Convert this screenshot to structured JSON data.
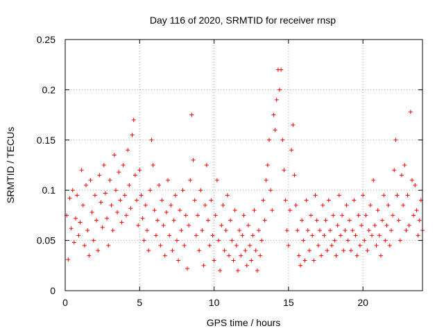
{
  "chart_data": {
    "type": "scatter",
    "title": "Day 116 of 2020, SRMTID for receiver rnsp",
    "xlabel": "GPS time / hours",
    "ylabel": "SRMTID / TECUs",
    "xlim": [
      0,
      24
    ],
    "ylim": [
      0,
      0.25
    ],
    "xticks": [
      0,
      5,
      10,
      15,
      20
    ],
    "xtick_labels": [
      "0",
      "5",
      "10",
      "15",
      "20"
    ],
    "yticks": [
      0,
      0.05,
      0.1,
      0.15,
      0.2,
      0.25
    ],
    "ytick_labels": [
      "0",
      "0.05",
      "0.1",
      "0.15",
      "0.2",
      "0.25"
    ],
    "grid": true,
    "marker": "+",
    "series": [
      {
        "name": "SRMTID",
        "color": "#ff0000",
        "points": [
          [
            0.1,
            0.075
          ],
          [
            0.2,
            0.031
          ],
          [
            0.3,
            0.092
          ],
          [
            0.4,
            0.062
          ],
          [
            0.5,
            0.1
          ],
          [
            0.6,
            0.048
          ],
          [
            0.7,
            0.072
          ],
          [
            0.8,
            0.095
          ],
          [
            0.9,
            0.055
          ],
          [
            1.0,
            0.068
          ],
          [
            1.1,
            0.12
          ],
          [
            1.2,
            0.085
          ],
          [
            1.3,
            0.045
          ],
          [
            1.4,
            0.105
          ],
          [
            1.5,
            0.06
          ],
          [
            1.6,
            0.035
          ],
          [
            1.7,
            0.11
          ],
          [
            1.8,
            0.078
          ],
          [
            1.9,
            0.05
          ],
          [
            2.0,
            0.095
          ],
          [
            2.1,
            0.07
          ],
          [
            2.2,
            0.04
          ],
          [
            2.3,
            0.115
          ],
          [
            2.4,
            0.088
          ],
          [
            2.5,
            0.063
          ],
          [
            2.6,
            0.125
          ],
          [
            2.7,
            0.097
          ],
          [
            2.8,
            0.072
          ],
          [
            2.9,
            0.045
          ],
          [
            3.0,
            0.11
          ],
          [
            3.1,
            0.085
          ],
          [
            3.2,
            0.06
          ],
          [
            3.3,
            0.135
          ],
          [
            3.4,
            0.1
          ],
          [
            3.5,
            0.078
          ],
          [
            3.6,
            0.118
          ],
          [
            3.7,
            0.09
          ],
          [
            3.8,
            0.068
          ],
          [
            3.9,
            0.125
          ],
          [
            4.0,
            0.095
          ],
          [
            4.1,
            0.075
          ],
          [
            4.2,
            0.14
          ],
          [
            4.3,
            0.105
          ],
          [
            4.4,
            0.082
          ],
          [
            4.5,
            0.155
          ],
          [
            4.6,
            0.17
          ],
          [
            4.7,
            0.115
          ],
          [
            4.8,
            0.09
          ],
          [
            4.9,
            0.065
          ],
          [
            5.0,
            0.12
          ],
          [
            5.1,
            0.095
          ],
          [
            5.2,
            0.072
          ],
          [
            5.3,
            0.05
          ],
          [
            5.4,
            0.085
          ],
          [
            5.5,
            0.06
          ],
          [
            5.6,
            0.04
          ],
          [
            5.7,
            0.1
          ],
          [
            5.8,
            0.15
          ],
          [
            5.9,
            0.125
          ],
          [
            6.0,
            0.08
          ],
          [
            6.1,
            0.055
          ],
          [
            6.2,
            0.07
          ],
          [
            6.3,
            0.105
          ],
          [
            6.4,
            0.045
          ],
          [
            6.5,
            0.09
          ],
          [
            6.6,
            0.065
          ],
          [
            6.7,
            0.035
          ],
          [
            6.8,
            0.078
          ],
          [
            6.9,
            0.11
          ],
          [
            7.0,
            0.055
          ],
          [
            7.1,
            0.085
          ],
          [
            7.2,
            0.04
          ],
          [
            7.3,
            0.07
          ],
          [
            7.4,
            0.095
          ],
          [
            7.5,
            0.05
          ],
          [
            7.6,
            0.03
          ],
          [
            7.7,
            0.08
          ],
          [
            7.8,
            0.06
          ],
          [
            7.9,
            0.1
          ],
          [
            8.0,
            0.045
          ],
          [
            8.1,
            0.075
          ],
          [
            8.2,
            0.022
          ],
          [
            8.3,
            0.065
          ],
          [
            8.4,
            0.11
          ],
          [
            8.5,
            0.175
          ],
          [
            8.6,
            0.13
          ],
          [
            8.7,
            0.09
          ],
          [
            8.8,
            0.055
          ],
          [
            8.9,
            0.075
          ],
          [
            9.0,
            0.04
          ],
          [
            9.1,
            0.1
          ],
          [
            9.2,
            0.06
          ],
          [
            9.3,
            0.025
          ],
          [
            9.4,
            0.085
          ],
          [
            9.5,
            0.125
          ],
          [
            9.6,
            0.07
          ],
          [
            9.7,
            0.045
          ],
          [
            9.8,
            0.09
          ],
          [
            9.9,
            0.055
          ],
          [
            10.0,
            0.03
          ],
          [
            10.1,
            0.075
          ],
          [
            10.2,
            0.11
          ],
          [
            10.3,
            0.05
          ],
          [
            10.4,
            0.02
          ],
          [
            10.5,
            0.065
          ],
          [
            10.6,
            0.085
          ],
          [
            10.7,
            0.04
          ],
          [
            10.8,
            0.06
          ],
          [
            10.9,
            0.095
          ],
          [
            11.0,
            0.035
          ],
          [
            11.1,
            0.07
          ],
          [
            11.2,
            0.05
          ],
          [
            11.3,
            0.03
          ],
          [
            11.4,
            0.08
          ],
          [
            11.5,
            0.045
          ],
          [
            11.6,
            0.02
          ],
          [
            11.7,
            0.06
          ],
          [
            11.8,
            0.035
          ],
          [
            11.9,
            0.055
          ],
          [
            12.0,
            0.075
          ],
          [
            12.1,
            0.04
          ],
          [
            12.2,
            0.025
          ],
          [
            12.3,
            0.065
          ],
          [
            12.4,
            0.045
          ],
          [
            12.5,
            0.03
          ],
          [
            12.6,
            0.055
          ],
          [
            12.7,
            0.08
          ],
          [
            12.8,
            0.04
          ],
          [
            12.9,
            0.02
          ],
          [
            13.0,
            0.06
          ],
          [
            13.1,
            0.035
          ],
          [
            13.2,
            0.05
          ],
          [
            13.3,
            0.09
          ],
          [
            13.4,
            0.07
          ],
          [
            13.5,
            0.11
          ],
          [
            13.6,
            0.125
          ],
          [
            13.7,
            0.15
          ],
          [
            13.8,
            0.1
          ],
          [
            13.9,
            0.08
          ],
          [
            14.0,
            0.175
          ],
          [
            14.1,
            0.16
          ],
          [
            14.2,
            0.19
          ],
          [
            14.3,
            0.22
          ],
          [
            14.4,
            0.2
          ],
          [
            14.5,
            0.22
          ],
          [
            14.6,
            0.15
          ],
          [
            14.7,
            0.12
          ],
          [
            14.8,
            0.09
          ],
          [
            14.9,
            0.06
          ],
          [
            15.0,
            0.045
          ],
          [
            15.1,
            0.08
          ],
          [
            15.2,
            0.14
          ],
          [
            15.3,
            0.165
          ],
          [
            15.4,
            0.115
          ],
          [
            15.5,
            0.085
          ],
          [
            15.6,
            0.06
          ],
          [
            15.7,
            0.035
          ],
          [
            15.8,
            0.025
          ],
          [
            15.9,
            0.07
          ],
          [
            16.0,
            0.05
          ],
          [
            16.1,
            0.03
          ],
          [
            16.2,
            0.09
          ],
          [
            16.3,
            0.06
          ],
          [
            16.4,
            0.04
          ],
          [
            16.5,
            0.075
          ],
          [
            16.6,
            0.055
          ],
          [
            16.7,
            0.03
          ],
          [
            16.8,
            0.095
          ],
          [
            16.9,
            0.07
          ],
          [
            17.0,
            0.045
          ],
          [
            17.1,
            0.06
          ],
          [
            17.2,
            0.035
          ],
          [
            17.3,
            0.085
          ],
          [
            17.4,
            0.055
          ],
          [
            17.5,
            0.07
          ],
          [
            17.6,
            0.04
          ],
          [
            17.7,
            0.09
          ],
          [
            17.8,
            0.06
          ],
          [
            17.9,
            0.045
          ],
          [
            18.0,
            0.075
          ],
          [
            18.1,
            0.05
          ],
          [
            18.2,
            0.035
          ],
          [
            18.3,
            0.065
          ],
          [
            18.4,
            0.095
          ],
          [
            18.5,
            0.055
          ],
          [
            18.6,
            0.075
          ],
          [
            18.7,
            0.04
          ],
          [
            18.8,
            0.06
          ],
          [
            18.9,
            0.085
          ],
          [
            19.0,
            0.05
          ],
          [
            19.1,
            0.07
          ],
          [
            19.2,
            0.04
          ],
          [
            19.3,
            0.06
          ],
          [
            19.4,
            0.09
          ],
          [
            19.5,
            0.055
          ],
          [
            19.6,
            0.035
          ],
          [
            19.7,
            0.075
          ],
          [
            19.8,
            0.045
          ],
          [
            19.9,
            0.065
          ],
          [
            20.0,
            0.095
          ],
          [
            20.1,
            0.05
          ],
          [
            20.2,
            0.075
          ],
          [
            20.3,
            0.04
          ],
          [
            20.4,
            0.06
          ],
          [
            20.5,
            0.085
          ],
          [
            20.6,
            0.055
          ],
          [
            20.7,
            0.11
          ],
          [
            20.8,
            0.065
          ],
          [
            20.9,
            0.045
          ],
          [
            21.0,
            0.08
          ],
          [
            21.1,
            0.055
          ],
          [
            21.2,
            0.035
          ],
          [
            21.3,
            0.07
          ],
          [
            21.4,
            0.095
          ],
          [
            21.5,
            0.05
          ],
          [
            21.6,
            0.065
          ],
          [
            21.7,
            0.085
          ],
          [
            21.8,
            0.045
          ],
          [
            21.9,
            0.06
          ],
          [
            22.0,
            0.075
          ],
          [
            22.1,
            0.12
          ],
          [
            22.2,
            0.15
          ],
          [
            22.3,
            0.095
          ],
          [
            22.4,
            0.07
          ],
          [
            22.5,
            0.05
          ],
          [
            22.6,
            0.115
          ],
          [
            22.7,
            0.085
          ],
          [
            22.8,
            0.125
          ],
          [
            22.9,
            0.06
          ],
          [
            23.0,
            0.095
          ],
          [
            23.1,
            0.065
          ],
          [
            23.2,
            0.178
          ],
          [
            23.3,
            0.11
          ],
          [
            23.4,
            0.075
          ],
          [
            23.5,
            0.105
          ],
          [
            23.6,
            0.08
          ],
          [
            23.7,
            0.055
          ],
          [
            23.8,
            0.07
          ],
          [
            23.9,
            0.09
          ],
          [
            24.0,
            0.06
          ]
        ]
      }
    ]
  }
}
